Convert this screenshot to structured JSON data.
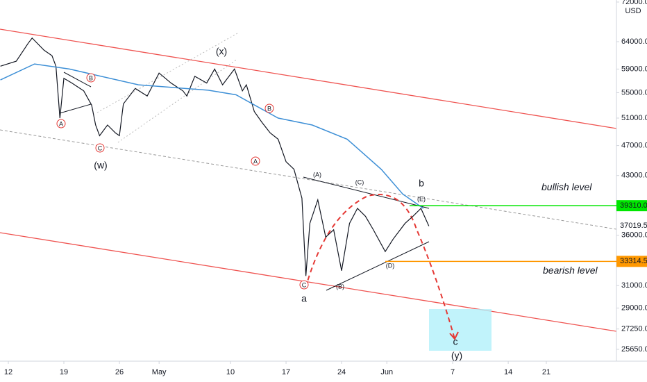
{
  "chart_data": {
    "type": "line",
    "log": true,
    "currency": "USD",
    "xlim": [
      -1.05,
      76.64
    ],
    "ylim": [
      24765,
      72440
    ],
    "xticks": [
      {
        "value": 0,
        "label": "12"
      },
      {
        "value": 7,
        "label": "19"
      },
      {
        "value": 14,
        "label": "26"
      },
      {
        "value": 19,
        "label": "May"
      },
      {
        "value": 28,
        "label": "10"
      },
      {
        "value": 35,
        "label": "17"
      },
      {
        "value": 42,
        "label": "24"
      },
      {
        "value": 47.7,
        "label": "Jun"
      },
      {
        "value": 56,
        "label": "7"
      },
      {
        "value": 63,
        "label": "14"
      },
      {
        "value": 67.8,
        "label": "21"
      }
    ],
    "yticks": [
      {
        "value": 72000,
        "label": "72000.0"
      },
      {
        "value": 64000,
        "label": "64000.0"
      },
      {
        "value": 59000,
        "label": "59000.0"
      },
      {
        "value": 55000,
        "label": "55000.0"
      },
      {
        "value": 51000,
        "label": "51000.0"
      },
      {
        "value": 47000,
        "label": "47000.0"
      },
      {
        "value": 43000,
        "label": "43000.0"
      },
      {
        "value": 36000,
        "label": "36000.0"
      },
      {
        "value": 31000,
        "label": "31000.0"
      },
      {
        "value": 29000,
        "label": "29000.0"
      },
      {
        "value": 27250,
        "label": "27250.0"
      },
      {
        "value": 25650,
        "label": "25650.0"
      }
    ],
    "series": [
      {
        "color": "#131722",
        "x": [
          -1,
          1,
          2.5,
          3,
          4.5,
          5.5,
          6,
          6.5,
          7,
          8,
          9.5,
          10.5,
          11,
          11.5,
          12.5,
          13.5,
          14,
          14.5,
          16,
          17.5,
          19,
          20.5,
          22,
          22.5,
          23.5,
          25,
          26,
          27,
          28.5,
          29.5,
          30,
          31,
          32,
          33,
          34,
          35,
          36,
          37,
          37.5,
          38,
          39,
          40,
          41,
          42,
          43,
          44,
          45,
          46,
          47.5,
          48.5,
          50,
          51,
          52,
          53
        ],
        "values": [
          59500,
          60400,
          63700,
          64700,
          62400,
          61400,
          59500,
          51000,
          57400,
          56600,
          55300,
          53000,
          49960,
          48400,
          49960,
          48800,
          48400,
          53200,
          55700,
          54450,
          58300,
          56600,
          55300,
          54450,
          57750,
          56600,
          59000,
          56300,
          59000,
          55300,
          56300,
          52000,
          50300,
          48800,
          47900,
          44800,
          43800,
          40200,
          31900,
          37300,
          40000,
          35800,
          36600,
          32400,
          37300,
          39000,
          38100,
          36600,
          34300,
          35600,
          37300,
          38100,
          39000,
          37000
        ]
      },
      {
        "color": "#3d8fd6",
        "x": [
          -1,
          3.3,
          7.7,
          16.4,
          25.2,
          28.7,
          34,
          38.3,
          42.7,
          47,
          49.7,
          52.3
        ],
        "values": [
          57130,
          59900,
          59000,
          56300,
          55400,
          54650,
          51000,
          49960,
          47900,
          43800,
          40700,
          39000
        ]
      }
    ],
    "levels": [
      {
        "value": 39310,
        "label": "39310.0",
        "color": "#00e600",
        "text": "bullish level"
      },
      {
        "value": 33314.5,
        "label": "33314.5",
        "color": "#ff9800",
        "text": "bearish level"
      }
    ],
    "last_price": {
      "value": 37019.5,
      "label": "37019.5"
    },
    "annotations": [
      "A",
      "B",
      "C",
      "(w)",
      "(x)",
      "B",
      "A",
      "(A)",
      "(C)",
      "(E)",
      "(D)",
      "(B)",
      "C",
      "a",
      "b",
      "c",
      "(y)"
    ]
  }
}
